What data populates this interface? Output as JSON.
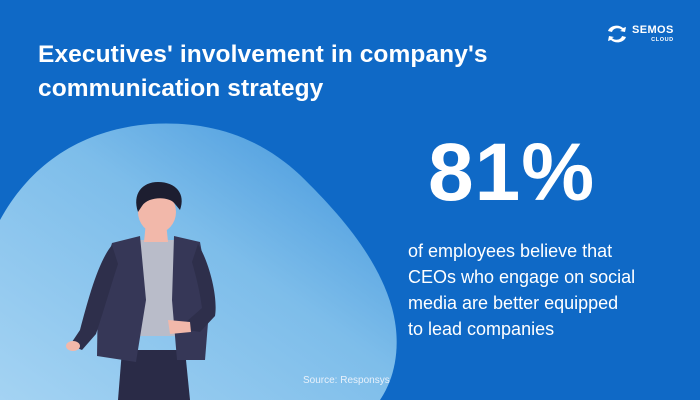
{
  "title": {
    "line1": "Executives' involvement in company's",
    "line2": "communication strategy"
  },
  "logo": {
    "name": "SEMOS",
    "sub": "CLOUD",
    "icon": "semos-cloud-icon"
  },
  "stat": {
    "value": "81%"
  },
  "description": {
    "line1": "of employees believe that",
    "line2": "CEOs who engage on social",
    "line3": "media are better equipped",
    "line4": "to lead companies"
  },
  "source": "Source: Responsys",
  "colors": {
    "background": "#0f69c6",
    "blob_light": "#8cc6ee",
    "jacket": "#353656",
    "shirt": "#b9bcc9",
    "skin": "#f2b8aa",
    "hair": "#1d1e30"
  },
  "illustration": "businessman-illustration"
}
